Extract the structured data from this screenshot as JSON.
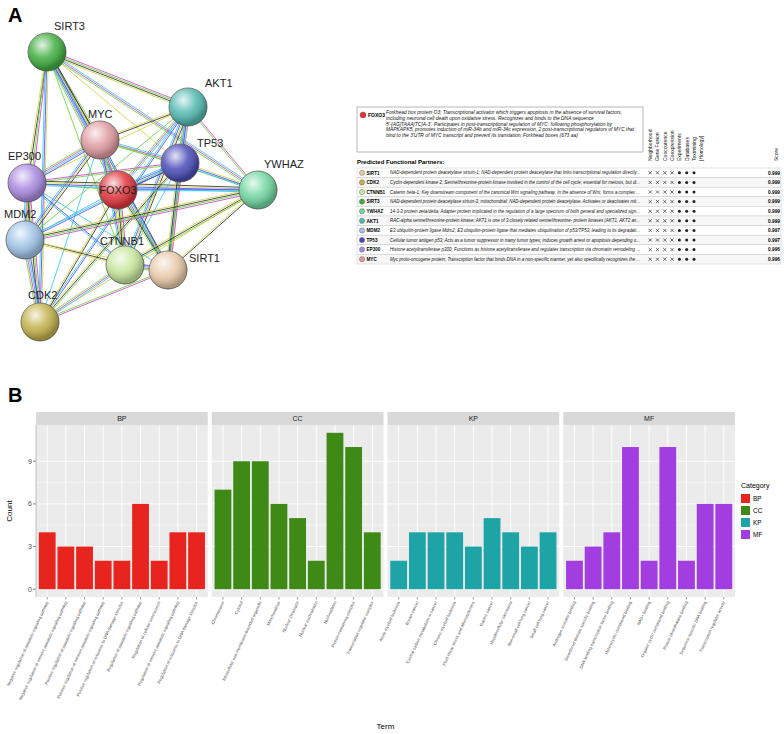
{
  "panels": [
    "A",
    "B"
  ],
  "network": {
    "nodes": [
      {
        "label": "SIRT3"
      },
      {
        "label": "AKT1"
      },
      {
        "label": "MYC"
      },
      {
        "label": "EP300"
      },
      {
        "label": "TP53"
      },
      {
        "label": "FOXO3"
      },
      {
        "label": "YWHAZ"
      },
      {
        "label": "MDM2"
      },
      {
        "label": "CTNNB1"
      },
      {
        "label": "SIRT1"
      },
      {
        "label": "CDK2"
      }
    ]
  },
  "table": {
    "query": {
      "name": "FOXO3",
      "description": "Forkhead box protein O3; Transcriptional activator which triggers apoptosis in the absence of survival factors, including neuronal cell death upon oxidative stress. Recognizes and binds to the DNA sequence 5'-[AG]TAAA[TC]A-3'. Participates in post-transcriptional regulation of MYC: following phosphorylation by MAPKAPK5, promotes induction of miR-34b and miR-34c expression, 2 post-transcriptional regulators of MYC that bind to the 3'UTR of MYC transcript and prevent its translation; Forkhead boxes (673 aa)"
    },
    "title": "Predicted Functional Partners:",
    "columns": [
      "Neighborhood",
      "Gene Fusion",
      "Cooccurence",
      "Coexpression",
      "Experiments",
      "Databases",
      "Textmining",
      "[Homology]",
      "Score"
    ],
    "rows": [
      {
        "name": "SIRT1",
        "description": "NAD-dependent protein deacetylase sirtuin-1; NAD-dependent protein deacetylase that links transcriptional regulation directly...",
        "score": 0.999
      },
      {
        "name": "CDK2",
        "description": "Cyclin-dependent kinase 2; Serine/threonine-protein kinase involved in the control of the cell cycle; essential for meiosis, but di...",
        "score": 0.999
      },
      {
        "name": "CTNNB1",
        "description": "Catenin beta-1; Key downstream component of the canonical Wnt signaling pathway. In the absence of Wnt, forms a complex ...",
        "score": 0.999
      },
      {
        "name": "SIRT3",
        "description": "NAD-dependent protein deacetylase sirtuin-3, mitochondrial; NAD-dependent protein deacetylase. Activates or deactivates mit...",
        "score": 0.999
      },
      {
        "name": "YWHAZ",
        "description": "14-3-3 protein zeta/delta; Adapter protein implicated in the regulation of a large spectrum of both general and specialized sign...",
        "score": 0.999
      },
      {
        "name": "AKT1",
        "description": "RAC-alpha serine/threonine-protein kinase; AKT1 is one of 3 closely related serine/threonine- protein kinases (AKT1, AKT2 an...",
        "score": 0.999
      },
      {
        "name": "MDM2",
        "description": "E3 ubiquitin-protein ligase Mdm2; E3 ubiquitin-protein ligase that mediates ubiquitination of p53/TP53, leading to its degradati...",
        "score": 0.997
      },
      {
        "name": "TP53",
        "description": "Cellular tumor antigen p53; Acts as a tumor suppressor in many tumor types; induces growth arrest or apoptosis depending o...",
        "score": 0.997
      },
      {
        "name": "EP300",
        "description": "Histone acetyltransferase p300; Functions as histone acetyltransferase and regulates transcription via chromatin remodeling ...",
        "score": 0.996
      },
      {
        "name": "MYC",
        "description": "Myc proto-oncogene protein; Transcription factor that binds DNA in a non-specific manner, yet also specifically recognizes the ...",
        "score": 0.996
      }
    ]
  },
  "chart_data": {
    "type": "bar",
    "y_label": "Count",
    "x_label": "Term",
    "legend_title": "Category",
    "legend": "right",
    "grid": true,
    "ylim": [
      -0.55,
      11.55
    ],
    "yticks": [
      0,
      3,
      6,
      9
    ],
    "facets": [
      {
        "name": "BP",
        "color": "#e8241f",
        "categories": [
          "Negative regulation of apoptotic signaling pathway",
          "Negative regulation of intrinsic apoptotic signaling pathway",
          "Positive regulation of apoptotic signaling pathway",
          "Positive regulation of intrinsic apoptotic signaling pathway",
          "Positive regulation of response to DNA damage stimulus",
          "Regulation of apoptotic signaling pathway",
          "Regulation of cellular senescence",
          "Regulation of intrinsic apoptotic signaling pathway",
          "Regulation of response to DNA damage stimulus"
        ],
        "values": [
          4,
          3,
          3,
          2,
          2,
          6,
          2,
          4,
          4
        ]
      },
      {
        "name": "CC",
        "color": "#3f8a17",
        "categories": [
          "Chromosome",
          "Cytosol",
          "Intracellular non-membrane-bounded organelle",
          "Mitochondrion",
          "Nuclear chromatin",
          "Nuclear euchromatin",
          "Nucleoplasm",
          "Protein-containing complex",
          "Transcription regulator complex"
        ],
        "values": [
          7,
          9,
          9,
          6,
          5,
          2,
          11,
          10,
          4
        ]
      },
      {
        "name": "KP",
        "color": "#1ea3a6",
        "categories": [
          "Acute myeloid leukemia",
          "Breast cancer",
          "Central carbon metabolism in cancer",
          "Chronic myeloid leukemia",
          "Fluid shear stress and atherosclerosis",
          "Gastric cancer",
          "Hepatocellular carcinoma",
          "Non-small cell lung cancer",
          "Small cell lung cancer"
        ],
        "values": [
          2,
          4,
          4,
          4,
          3,
          5,
          4,
          3,
          4
        ]
      },
      {
        "name": "MF",
        "color": "#a23ee0",
        "categories": [
          "Androgen receptor binding",
          "Disordered domain specific binding",
          "DNA-binding transcription factor binding",
          "Heterocyclic compound binding",
          "NAD+ binding",
          "Organic cyclic compound binding",
          "Protein phosphatase binding",
          "Sequence-specific DNA binding",
          "Transcription regulator activity"
        ],
        "values": [
          2,
          3,
          4,
          10,
          2,
          10,
          2,
          6,
          6
        ]
      }
    ]
  }
}
